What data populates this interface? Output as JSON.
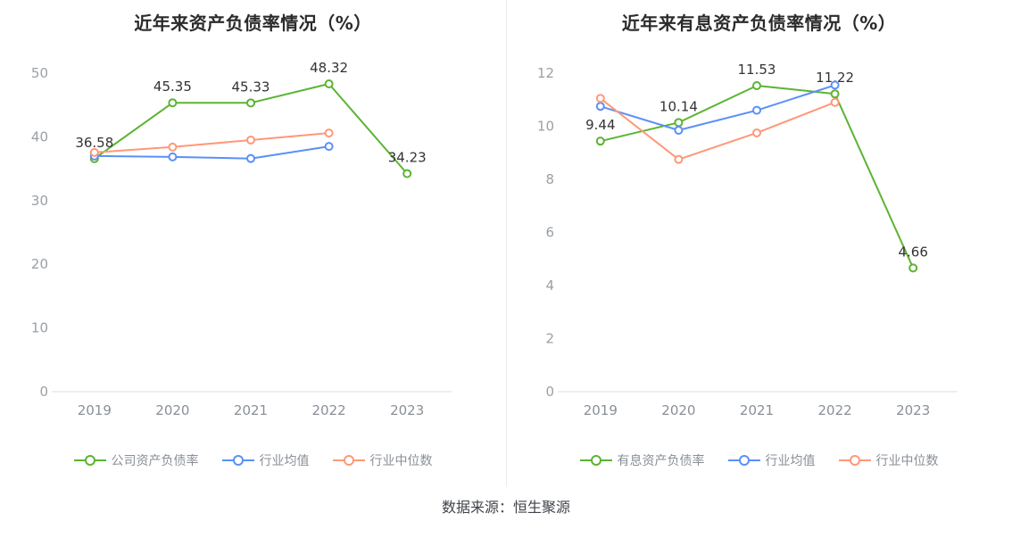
{
  "source": "数据来源：恒生聚源",
  "colors": {
    "company_green": "#5bb431",
    "industry_avg_blue": "#5b8ff9",
    "industry_median_orange": "#ff9878",
    "axis_line": "#dcdcdc",
    "tick_text": "#9aa0a6",
    "label_text": "#333333"
  },
  "chart_data": [
    {
      "type": "line",
      "title": "近年来资产负债率情况（%）",
      "categories": [
        "2019",
        "2020",
        "2021",
        "2022",
        "2023"
      ],
      "xlabel": "",
      "ylabel": "",
      "ylim": [
        0,
        50
      ],
      "yticks": [
        0,
        10,
        20,
        30,
        40,
        50
      ],
      "grid": false,
      "legend_position": "bottom",
      "series": [
        {
          "name": "公司资产负债率",
          "color": "#5bb431",
          "labeled": true,
          "values": [
            36.58,
            45.35,
            45.33,
            48.32,
            34.23
          ]
        },
        {
          "name": "行业均值",
          "color": "#5b8ff9",
          "labeled": false,
          "values": [
            37.0,
            36.85,
            36.6,
            38.5,
            null
          ]
        },
        {
          "name": "行业中位数",
          "color": "#ff9878",
          "labeled": false,
          "values": [
            37.55,
            38.4,
            39.5,
            40.6,
            null
          ]
        }
      ]
    },
    {
      "type": "line",
      "title": "近年来有息资产负债率情况（%）",
      "categories": [
        "2019",
        "2020",
        "2021",
        "2022",
        "2023"
      ],
      "xlabel": "",
      "ylabel": "",
      "ylim": [
        0,
        12
      ],
      "yticks": [
        0,
        2,
        4,
        6,
        8,
        10,
        12
      ],
      "grid": false,
      "legend_position": "bottom",
      "series": [
        {
          "name": "有息资产负债率",
          "color": "#5bb431",
          "labeled": true,
          "values": [
            9.44,
            10.14,
            11.53,
            11.22,
            4.66
          ]
        },
        {
          "name": "行业均值",
          "color": "#5b8ff9",
          "labeled": false,
          "values": [
            10.75,
            9.85,
            10.6,
            11.55,
            null
          ]
        },
        {
          "name": "行业中位数",
          "color": "#ff9878",
          "labeled": false,
          "values": [
            11.05,
            8.75,
            9.75,
            10.9,
            null
          ]
        }
      ]
    }
  ]
}
